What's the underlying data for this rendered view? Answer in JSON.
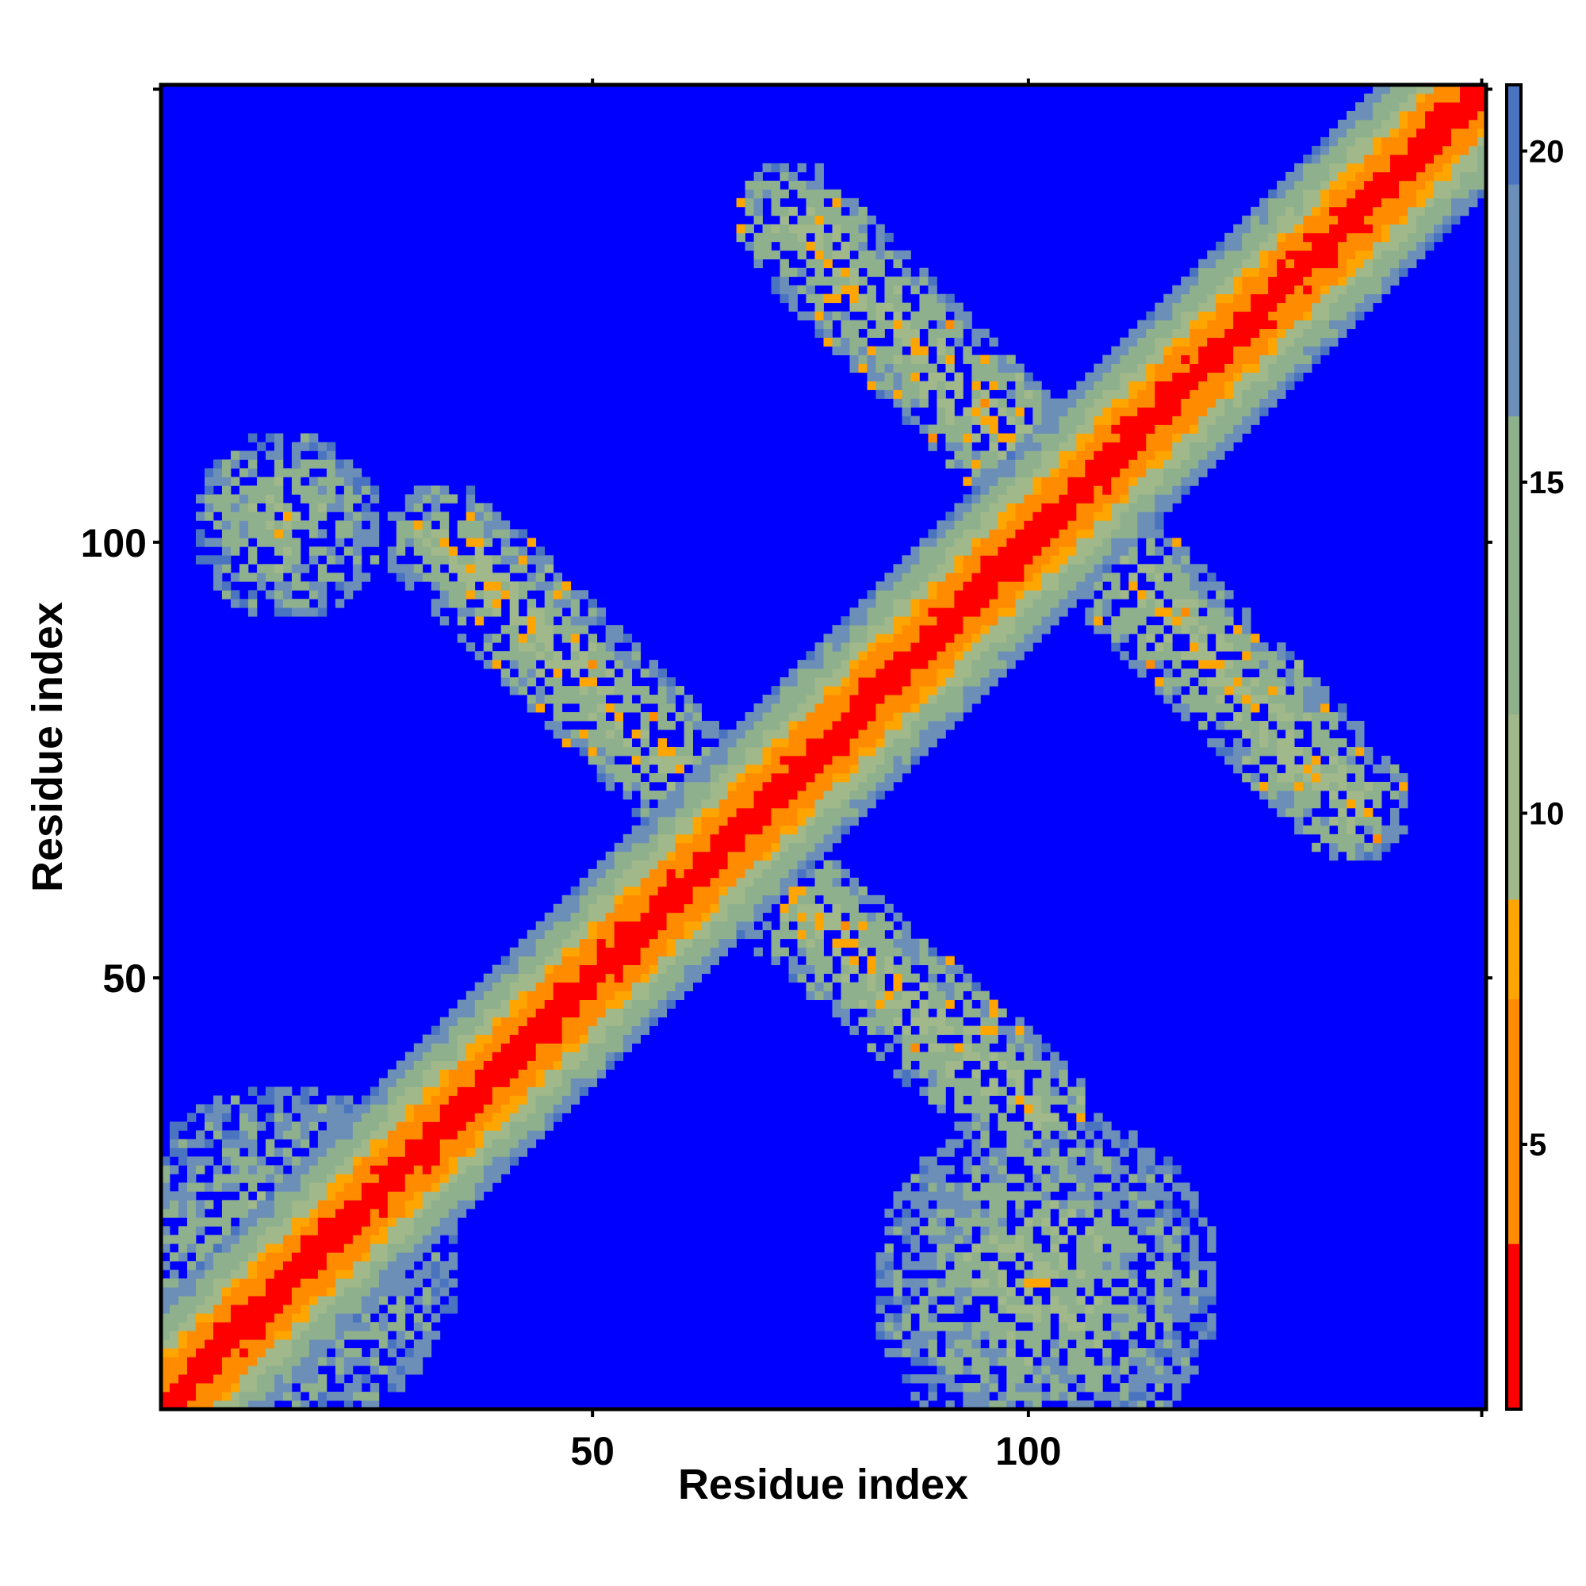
{
  "chart_data": {
    "type": "heatmap",
    "title": "",
    "xlabel": "Residue index",
    "ylabel": "Residue index",
    "x_range": [
      1,
      152
    ],
    "y_range": [
      1,
      152
    ],
    "x_ticks": [
      50,
      100
    ],
    "y_ticks": [
      50,
      100
    ],
    "colorbar": {
      "ticks": [
        5,
        10,
        15,
        20
      ],
      "range": [
        1,
        21
      ],
      "stops": [
        {
          "value": 1,
          "color": "#ff0000"
        },
        {
          "value": 6,
          "color": "#ff8c00"
        },
        {
          "value": 8.5,
          "color": "#ffa500"
        },
        {
          "value": 9,
          "color": "#a0b88a"
        },
        {
          "value": 14,
          "color": "#8fb08c"
        },
        {
          "value": 18,
          "color": "#6c8fb8"
        },
        {
          "value": 21,
          "color": "#4a74c0"
        }
      ],
      "background_color": "#0000ff",
      "background_meaning": "value > 21 (no contact)"
    },
    "features": {
      "diagonal": {
        "from": 1,
        "to": 152,
        "core_value": 1,
        "half_width_residues": 9
      },
      "antidiagonal_band_upper_left": {
        "start": [
          33,
          100
        ],
        "end": [
          64,
          70
        ],
        "half_width_residues": 7
      },
      "antidiagonal_band_lower_right": {
        "start": [
          67,
          64
        ],
        "end": [
          100,
          35
        ],
        "half_width_residues": 7
      },
      "antidiagonal_band_upper_right_arm": {
        "start": [
          73,
          137
        ],
        "end": [
          101,
          108
        ],
        "half_width_residues": 7
      },
      "antidiagonal_band_lower_right_arm": {
        "start": [
          107,
          101
        ],
        "end": [
          137,
          70
        ],
        "half_width_residues": 7
      },
      "blob_top_left": {
        "center": [
          15,
          102
        ],
        "radius": 11
      },
      "blob_bottom_left": {
        "center": [
          15,
          18
        ],
        "radius": 20
      },
      "blob_bottom_right": {
        "center": [
          102,
          15
        ],
        "radius": 20
      }
    }
  }
}
